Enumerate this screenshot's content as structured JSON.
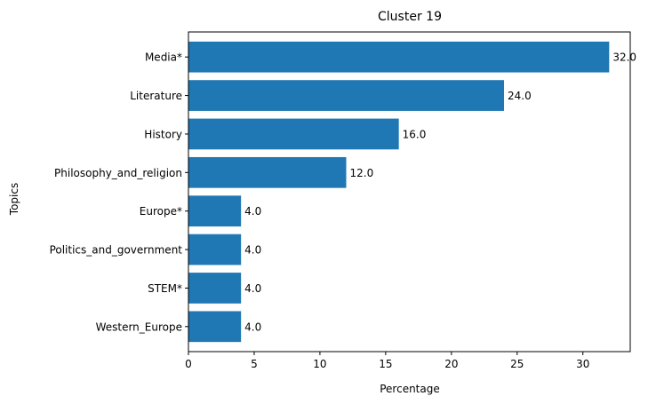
{
  "chart_data": {
    "type": "bar",
    "orientation": "horizontal",
    "title": "Cluster 19",
    "xlabel": "Percentage",
    "ylabel": "Topics",
    "categories": [
      "Media*",
      "Literature",
      "History",
      "Philosophy_and_religion",
      "Europe*",
      "Politics_and_government",
      "STEM*",
      "Western_Europe"
    ],
    "values": [
      32.0,
      24.0,
      16.0,
      12.0,
      4.0,
      4.0,
      4.0,
      4.0
    ],
    "value_labels": [
      "32.0",
      "24.0",
      "16.0",
      "12.0",
      "4.0",
      "4.0",
      "4.0",
      "4.0"
    ],
    "xticks": [
      0,
      5,
      10,
      15,
      20,
      25,
      30
    ],
    "xlim": [
      0,
      33.6
    ],
    "grid": false,
    "legend": "none",
    "bar_color": "#1f77b4"
  }
}
